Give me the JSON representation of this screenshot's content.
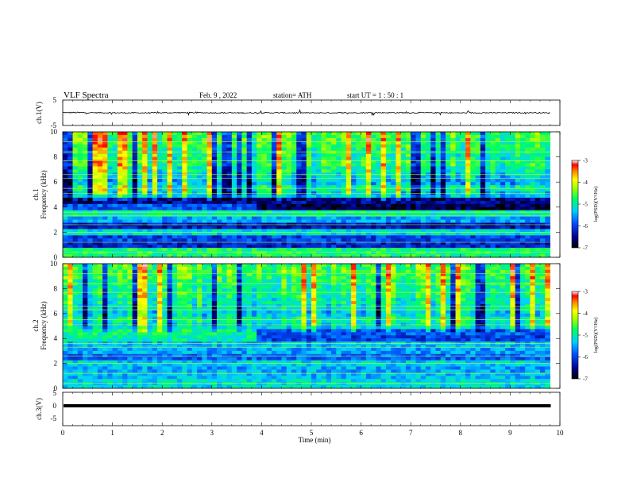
{
  "header": {
    "title": "VLF  Spectra",
    "date": "Feb. 9  , 2022",
    "station": "station= ATH",
    "start": "start  UT  =    1  : 50 : 1"
  },
  "panels": {
    "ch1_wave": {
      "ylabel": "ch.1(V)",
      "yticks": [
        "5",
        "-5"
      ]
    },
    "ch1_spec": {
      "ylabel_top": "ch.1",
      "ylabel": "Frequency  (kHz)",
      "yticks": [
        "10",
        "8",
        "6",
        "4",
        "2",
        "0"
      ]
    },
    "ch2_spec": {
      "ylabel_top": "ch.2",
      "ylabel": "Frequency  (kHz)",
      "yticks": [
        "10",
        "8",
        "6",
        "4",
        "2",
        "0"
      ]
    },
    "ch3_wave": {
      "ylabel": "ch.3(V)",
      "yticks": [
        "5",
        "0",
        "-5"
      ]
    }
  },
  "xaxis": {
    "label": "Time  (min)",
    "ticks": [
      "0",
      "1",
      "2",
      "3",
      "4",
      "5",
      "6",
      "7",
      "8",
      "9",
      "10"
    ]
  },
  "colorbar": {
    "ticks": [
      "-3",
      "-4",
      "-5",
      "-6",
      "-7"
    ],
    "label": "log(PSD)(V²/Hz)"
  },
  "chart_data": [
    {
      "type": "line",
      "name": "ch.1 waveform",
      "ylabel": "ch.1(V)",
      "xlabel": "",
      "xlim": [
        0,
        10
      ],
      "ylim": [
        -5,
        5
      ],
      "x": [
        0,
        0.5,
        1,
        1.5,
        2,
        2.5,
        3,
        3.5,
        4,
        4.5,
        5,
        5.5,
        6,
        6.5,
        7,
        7.5,
        8,
        8.5,
        9,
        9.5,
        9.8
      ],
      "y": [
        0.2,
        0.1,
        0.0,
        -0.1,
        0.0,
        0.1,
        0.0,
        -0.1,
        0.0,
        0.0,
        -0.1,
        0.0,
        0.0,
        0.1,
        0.0,
        0.0,
        -0.1,
        0.0,
        0.0,
        0.1,
        -0.2
      ]
    },
    {
      "type": "heatmap",
      "name": "ch.1 spectrogram",
      "xlabel": "Time  (min)",
      "ylabel": "Frequency  (kHz)",
      "xlim": [
        0,
        10
      ],
      "ylim": [
        0,
        10
      ],
      "zlim": [
        -7,
        -3
      ],
      "zlabel": "log(PSD)(V²/Hz)",
      "data_extent_x": [
        0,
        9.8
      ],
      "freq_profile_khz": [
        0.5,
        1.0,
        1.5,
        2.0,
        2.5,
        3.0,
        3.5,
        4.0,
        4.5,
        5.0,
        5.5,
        6.0,
        6.5,
        7.0,
        7.5,
        8.0,
        8.5,
        9.0,
        9.5,
        10.0
      ],
      "mean_log_psd": [
        -4.8,
        -6.2,
        -6.0,
        -5.2,
        -6.3,
        -5.5,
        -5.0,
        -6.7,
        -6.5,
        -5.3,
        -5.0,
        -5.4,
        -5.2,
        -5.0,
        -4.8,
        -4.9,
        -4.8,
        -4.7,
        -4.6,
        -4.6
      ]
    },
    {
      "type": "heatmap",
      "name": "ch.2 spectrogram",
      "xlabel": "Time  (min)",
      "ylabel": "Frequency  (kHz)",
      "xlim": [
        0,
        10
      ],
      "ylim": [
        0,
        10
      ],
      "zlim": [
        -7,
        -3
      ],
      "zlabel": "log(PSD)(V²/Hz)",
      "data_extent_x": [
        0,
        9.8
      ],
      "freq_profile_khz": [
        0.5,
        1.0,
        1.5,
        2.0,
        2.5,
        3.0,
        3.5,
        4.0,
        4.5,
        5.0,
        5.5,
        6.0,
        6.5,
        7.0,
        7.5,
        8.0,
        8.5,
        9.0,
        9.5,
        10.0
      ],
      "mean_log_psd": [
        -5.2,
        -5.4,
        -5.5,
        -5.3,
        -5.8,
        -5.5,
        -5.4,
        -6.0,
        -5.9,
        -5.2,
        -5.0,
        -5.3,
        -5.1,
        -5.0,
        -4.9,
        -4.9,
        -4.8,
        -4.7,
        -4.6,
        -4.6
      ]
    },
    {
      "type": "line",
      "name": "ch.3 waveform",
      "ylabel": "ch.3(V)",
      "xlabel": "Time  (min)",
      "xlim": [
        0,
        10
      ],
      "ylim": [
        -5,
        5
      ],
      "x": [
        0,
        9.8
      ],
      "y": [
        0,
        0
      ]
    }
  ]
}
